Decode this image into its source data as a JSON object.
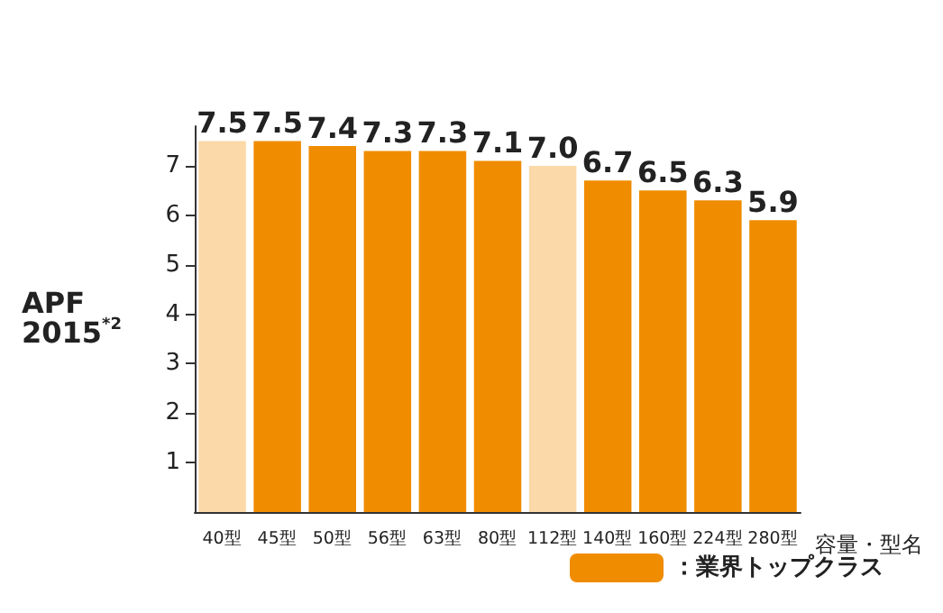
{
  "chart_data": {
    "type": "bar",
    "ylabel": "APF 2015$^{*2}$",
    "xlabel": "容量・型名",
    "categories": [
      "40型",
      "45型",
      "50型",
      "56型",
      "63型",
      "80型",
      "112型",
      "140型",
      "160型",
      "224型",
      "280型"
    ],
    "series": [
      {
        "name": "：業界トップクラス",
        "color": "#f08c00",
        "values": [
          null,
          7.5,
          7.4,
          7.3,
          7.3,
          7.1,
          null,
          6.7,
          6.5,
          6.3,
          5.9
        ]
      },
      {
        "color": "#fcd9a8",
        "values": [
          7.5,
          null,
          null,
          null,
          null,
          null,
          7.0,
          null,
          null,
          null,
          null
        ],
        "value_labels": [
          "7.5",
          null,
          null,
          null,
          null,
          null,
          "7.0",
          null,
          null,
          null,
          null
        ]
      }
    ],
    "stacked": true,
    "data_labels": true,
    "ylim": [
      0,
      7.8
    ],
    "yticks": [
      1,
      2,
      3,
      4,
      5,
      6,
      7
    ],
    "grid": false,
    "legend": "bottom right"
  }
}
